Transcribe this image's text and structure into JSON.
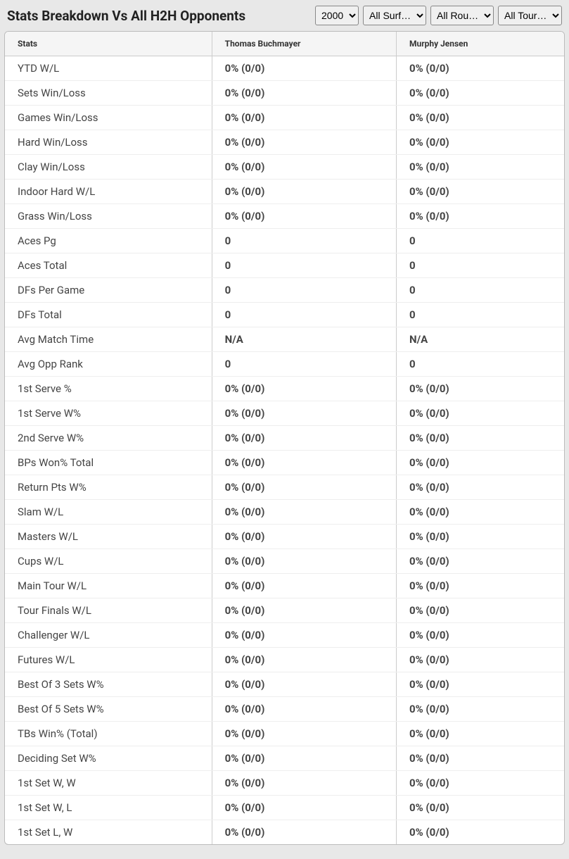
{
  "title": "Stats Breakdown Vs All H2H Opponents",
  "filters": {
    "year": {
      "selected": "2000",
      "options": [
        "2000"
      ]
    },
    "surface": {
      "selected": "All Surf…",
      "options": [
        "All Surf…"
      ]
    },
    "round": {
      "selected": "All Rou…",
      "options": [
        "All Rou…"
      ]
    },
    "tournament": {
      "selected": "All Tour…",
      "options": [
        "All Tour…"
      ]
    }
  },
  "columns": {
    "stats": "Stats",
    "player1": "Thomas Buchmayer",
    "player2": "Murphy Jensen"
  },
  "rows": [
    {
      "stat": "YTD W/L",
      "p1": "0% (0/0)",
      "p2": "0% (0/0)"
    },
    {
      "stat": "Sets Win/Loss",
      "p1": "0% (0/0)",
      "p2": "0% (0/0)"
    },
    {
      "stat": "Games Win/Loss",
      "p1": "0% (0/0)",
      "p2": "0% (0/0)"
    },
    {
      "stat": "Hard Win/Loss",
      "p1": "0% (0/0)",
      "p2": "0% (0/0)"
    },
    {
      "stat": "Clay Win/Loss",
      "p1": "0% (0/0)",
      "p2": "0% (0/0)"
    },
    {
      "stat": "Indoor Hard W/L",
      "p1": "0% (0/0)",
      "p2": "0% (0/0)"
    },
    {
      "stat": "Grass Win/Loss",
      "p1": "0% (0/0)",
      "p2": "0% (0/0)"
    },
    {
      "stat": "Aces Pg",
      "p1": "0",
      "p2": "0"
    },
    {
      "stat": "Aces Total",
      "p1": "0",
      "p2": "0"
    },
    {
      "stat": "DFs Per Game",
      "p1": "0",
      "p2": "0"
    },
    {
      "stat": "DFs Total",
      "p1": "0",
      "p2": "0"
    },
    {
      "stat": "Avg Match Time",
      "p1": "N/A",
      "p2": "N/A"
    },
    {
      "stat": "Avg Opp Rank",
      "p1": "0",
      "p2": "0"
    },
    {
      "stat": "1st Serve %",
      "p1": "0% (0/0)",
      "p2": "0% (0/0)"
    },
    {
      "stat": "1st Serve W%",
      "p1": "0% (0/0)",
      "p2": "0% (0/0)"
    },
    {
      "stat": "2nd Serve W%",
      "p1": "0% (0/0)",
      "p2": "0% (0/0)"
    },
    {
      "stat": "BPs Won% Total",
      "p1": "0% (0/0)",
      "p2": "0% (0/0)"
    },
    {
      "stat": "Return Pts W%",
      "p1": "0% (0/0)",
      "p2": "0% (0/0)"
    },
    {
      "stat": "Slam W/L",
      "p1": "0% (0/0)",
      "p2": "0% (0/0)"
    },
    {
      "stat": "Masters W/L",
      "p1": "0% (0/0)",
      "p2": "0% (0/0)"
    },
    {
      "stat": "Cups W/L",
      "p1": "0% (0/0)",
      "p2": "0% (0/0)"
    },
    {
      "stat": "Main Tour W/L",
      "p1": "0% (0/0)",
      "p2": "0% (0/0)"
    },
    {
      "stat": "Tour Finals W/L",
      "p1": "0% (0/0)",
      "p2": "0% (0/0)"
    },
    {
      "stat": "Challenger W/L",
      "p1": "0% (0/0)",
      "p2": "0% (0/0)"
    },
    {
      "stat": "Futures W/L",
      "p1": "0% (0/0)",
      "p2": "0% (0/0)"
    },
    {
      "stat": "Best Of 3 Sets W%",
      "p1": "0% (0/0)",
      "p2": "0% (0/0)"
    },
    {
      "stat": "Best Of 5 Sets W%",
      "p1": "0% (0/0)",
      "p2": "0% (0/0)"
    },
    {
      "stat": "TBs Win% (Total)",
      "p1": "0% (0/0)",
      "p2": "0% (0/0)"
    },
    {
      "stat": "Deciding Set W%",
      "p1": "0% (0/0)",
      "p2": "0% (0/0)"
    },
    {
      "stat": "1st Set W, W",
      "p1": "0% (0/0)",
      "p2": "0% (0/0)"
    },
    {
      "stat": "1st Set W, L",
      "p1": "0% (0/0)",
      "p2": "0% (0/0)"
    },
    {
      "stat": "1st Set L, W",
      "p1": "0% (0/0)",
      "p2": "0% (0/0)"
    }
  ],
  "styling": {
    "background_color": "#e8e8e8",
    "table_background": "#ffffff",
    "header_row_background": "#f5f5f5",
    "border_color": "#cccccc",
    "title_fontsize": 19,
    "header_fontsize": 12,
    "cell_fontsize": 15,
    "text_color": "#444444"
  }
}
